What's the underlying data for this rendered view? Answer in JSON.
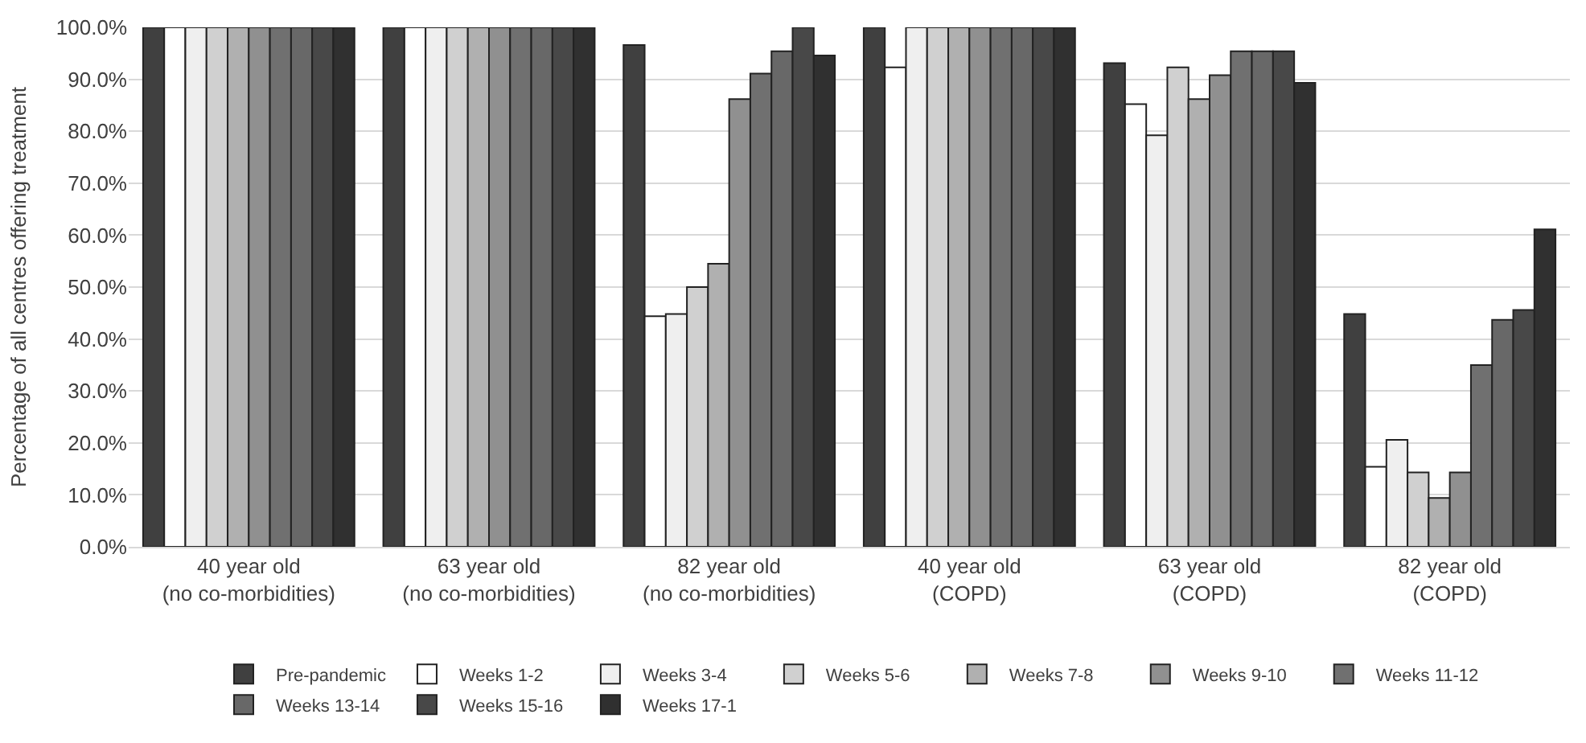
{
  "chart_data": {
    "type": "bar",
    "ylabel": "Percentage of all centres offering treatment",
    "categories": [
      "40 year old\n(no co-morbidities)",
      "63 year old\n(no co-morbidities)",
      "82 year old\n(no co-morbidities)",
      "40 year old\n(COPD)",
      "63 year old\n(COPD)",
      "82 year old\n(COPD)"
    ],
    "series": [
      {
        "name": "Pre-pandemic",
        "color": "#404040",
        "values": [
          100,
          100,
          96.6,
          100,
          93.1,
          44.8
        ]
      },
      {
        "name": "Weeks 1-2",
        "color": "#ffffff",
        "values": [
          100,
          100,
          44.4,
          92.3,
          85.2,
          15.4
        ]
      },
      {
        "name": "Weeks 3-4",
        "color": "#efefef",
        "values": [
          100,
          100,
          44.8,
          100,
          79.2,
          20.6
        ]
      },
      {
        "name": "Weeks 5-6",
        "color": "#d0d0d0",
        "values": [
          100,
          100,
          50.0,
          100,
          92.3,
          14.3
        ]
      },
      {
        "name": "Weeks 7-8",
        "color": "#b0b0b0",
        "values": [
          100,
          100,
          54.5,
          100,
          86.2,
          9.4
        ]
      },
      {
        "name": "Weeks 9-10",
        "color": "#909090",
        "values": [
          100,
          100,
          86.2,
          100,
          90.8,
          14.3
        ]
      },
      {
        "name": "Weeks 11-12",
        "color": "#707070",
        "values": [
          100,
          100,
          91.1,
          100,
          95.4,
          35.0
        ]
      },
      {
        "name": "Weeks 13-14",
        "color": "#686868",
        "values": [
          100,
          100,
          95.4,
          100,
          95.4,
          43.7
        ]
      },
      {
        "name": "Weeks 15-16",
        "color": "#484848",
        "values": [
          100,
          100,
          100,
          100,
          95.4,
          45.6
        ]
      },
      {
        "name": "Weeks 17-1",
        "color": "#303030",
        "values": [
          100,
          100,
          94.6,
          100,
          89.3,
          61.1
        ]
      }
    ],
    "ylim": [
      0,
      100
    ],
    "yticks": [
      {
        "value": 0,
        "label": "0.0%"
      },
      {
        "value": 10,
        "label": "10.0%"
      },
      {
        "value": 20,
        "label": "20.0%"
      },
      {
        "value": 30,
        "label": "30.0%"
      },
      {
        "value": 40,
        "label": "40.0%"
      },
      {
        "value": 50,
        "label": "50.0%"
      },
      {
        "value": 60,
        "label": "60.0%"
      },
      {
        "value": 70,
        "label": "70.0%"
      },
      {
        "value": 80,
        "label": "80.0%"
      },
      {
        "value": 90,
        "label": "90.0%"
      },
      {
        "value": 100,
        "label": "100.0%"
      }
    ],
    "grid": "y",
    "legend": "bottom"
  }
}
